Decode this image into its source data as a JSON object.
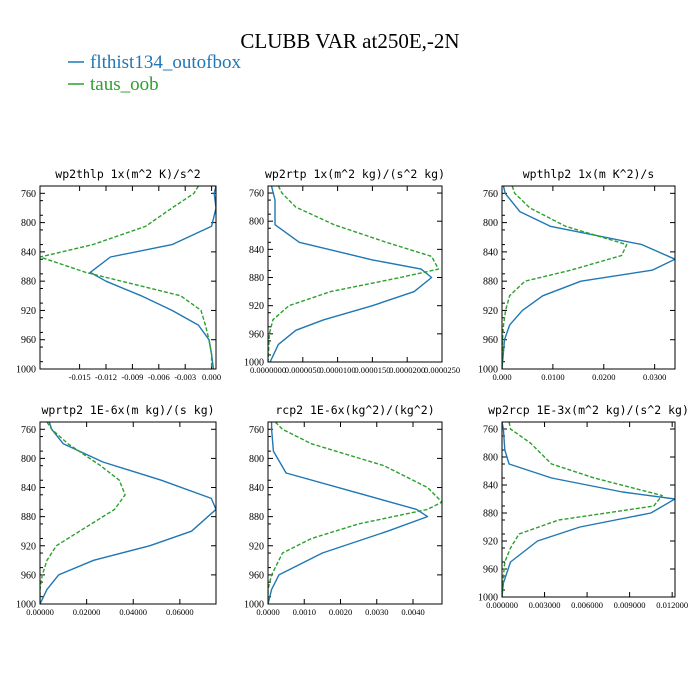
{
  "figure": {
    "title": "CLUBB VAR at250E,-2N",
    "legend": [
      {
        "name": "flthist134_outofbox",
        "color": "#1f77b4",
        "dash": "solid"
      },
      {
        "name": "taus_oob",
        "color": "#2ca02c",
        "dash": "dashed"
      }
    ]
  },
  "chart_data": [
    {
      "type": "line",
      "title": "wp2thlp  1x(m^2 K)/s^2",
      "ylim": [
        1000,
        750
      ],
      "yticks": [
        "760",
        "800",
        "840",
        "880",
        "920",
        "960",
        "1000"
      ],
      "xlim": [
        -0.0195,
        0.0005
      ],
      "xticks": [
        "-0.015",
        "-0.012",
        "-0.009",
        "-0.006",
        "-0.003",
        "0.000"
      ],
      "xtick_values": [
        -0.015,
        -0.012,
        -0.009,
        -0.006,
        -0.003,
        0.0
      ],
      "series": [
        {
          "name": "flthist134_outofbox",
          "y": [
            750,
            760,
            780,
            805,
            830,
            847,
            868,
            880,
            900,
            920,
            940,
            960,
            980,
            1000
          ],
          "x": [
            0.0005,
            0.0003,
            0.0005,
            0.0,
            -0.0045,
            -0.0115,
            -0.0138,
            -0.012,
            -0.008,
            -0.0045,
            -0.0015,
            -0.0003,
            0.0,
            0.0002
          ]
        },
        {
          "name": "taus_oob",
          "y": [
            750,
            760,
            780,
            805,
            830,
            847,
            868,
            900,
            920,
            940,
            960,
            980,
            1000
          ],
          "x": [
            -0.0015,
            -0.002,
            -0.0045,
            -0.0075,
            -0.0135,
            -0.0195,
            -0.0143,
            -0.0035,
            -0.0012,
            -0.0007,
            -0.0003,
            0.0,
            0.0
          ]
        }
      ]
    },
    {
      "type": "line",
      "title": "wp2rtp  1x(m^2 kg)/(s^2 kg)",
      "ylim": [
        1000,
        750
      ],
      "yticks": [
        "760",
        "800",
        "840",
        "880",
        "920",
        "960",
        "1000"
      ],
      "xlim": [
        0,
        2.5e-05
      ],
      "xticks": [
        "0.0000000",
        "0.0000050",
        "0.0000100",
        "0.0000150",
        "0.0000200",
        "0.0000250"
      ],
      "xtick_values": [
        0,
        5e-06,
        1e-05,
        1.5e-05,
        2e-05,
        2.5e-05
      ],
      "series": [
        {
          "name": "flthist134_outofbox",
          "y": [
            750,
            770,
            805,
            830,
            855,
            868,
            880,
            900,
            920,
            940,
            955,
            975,
            1000
          ],
          "x": [
            5e-07,
            1e-06,
            1e-06,
            4.5e-06,
            1.5e-05,
            2.2e-05,
            2.35e-05,
            2.1e-05,
            1.5e-05,
            8e-06,
            4e-06,
            1.5e-06,
            3e-07
          ]
        },
        {
          "name": "taus_oob",
          "y": [
            750,
            760,
            780,
            805,
            830,
            850,
            868,
            880,
            900,
            920,
            940,
            960,
            1000
          ],
          "x": [
            1.5e-06,
            2e-06,
            4e-06,
            9.5e-06,
            1.7e-05,
            2.35e-05,
            2.45e-05,
            1.9e-05,
            9e-06,
            3e-06,
            7e-07,
            2e-07,
            0.0
          ]
        }
      ]
    },
    {
      "type": "line",
      "title": "wpthlp2  1x(m K^2)/s",
      "ylim": [
        1000,
        750
      ],
      "yticks": [
        "760",
        "800",
        "840",
        "880",
        "920",
        "960",
        "1000"
      ],
      "xlim": [
        0,
        0.034
      ],
      "xticks": [
        "0.000",
        "0.0100",
        "0.0200",
        "0.0300"
      ],
      "xtick_values": [
        0,
        0.01,
        0.02,
        0.03
      ],
      "series": [
        {
          "name": "flthist134_outofbox",
          "y": [
            750,
            760,
            785,
            805,
            830,
            850,
            865,
            880,
            900,
            920,
            940,
            960,
            1000
          ],
          "x": [
            0.0003,
            0.0006,
            0.0035,
            0.0095,
            0.0275,
            0.034,
            0.0295,
            0.0155,
            0.008,
            0.004,
            0.0015,
            0.0005,
            0.0
          ]
        },
        {
          "name": "taus_oob",
          "y": [
            750,
            760,
            780,
            805,
            830,
            845,
            865,
            880,
            900,
            920,
            940,
            960,
            1000
          ],
          "x": [
            0.002,
            0.0025,
            0.0055,
            0.0125,
            0.0245,
            0.0235,
            0.0135,
            0.0045,
            0.0015,
            0.0007,
            0.0003,
            0.0001,
            0.0
          ]
        }
      ]
    },
    {
      "type": "line",
      "title": "wprtp2  1E-6x(m kg)/(s kg)",
      "ylim": [
        1000,
        750
      ],
      "yticks": [
        "760",
        "800",
        "840",
        "880",
        "920",
        "960",
        "1000"
      ],
      "xlim": [
        0,
        0.0755
      ],
      "xticks": [
        "0.00000",
        "0.02000",
        "0.04000",
        "0.06000"
      ],
      "xtick_values": [
        0,
        0.02,
        0.04,
        0.06
      ],
      "series": [
        {
          "name": "flthist134_outofbox",
          "y": [
            750,
            760,
            780,
            805,
            830,
            855,
            870,
            900,
            920,
            940,
            960,
            980,
            1000
          ],
          "x": [
            0.004,
            0.005,
            0.01,
            0.027,
            0.052,
            0.0735,
            0.0755,
            0.065,
            0.047,
            0.023,
            0.008,
            0.003,
            0.0
          ]
        },
        {
          "name": "taus_oob",
          "y": [
            750,
            760,
            780,
            810,
            830,
            850,
            870,
            900,
            920,
            940,
            960,
            980,
            1000
          ],
          "x": [
            0.003,
            0.005,
            0.012,
            0.026,
            0.034,
            0.0365,
            0.032,
            0.017,
            0.007,
            0.003,
            0.001,
            0.0,
            0.0
          ]
        }
      ]
    },
    {
      "type": "line",
      "title": "rcp2  1E-6x(kg^2)/(kg^2)",
      "ylim": [
        1000,
        750
      ],
      "yticks": [
        "760",
        "800",
        "840",
        "880",
        "920",
        "960",
        "1000"
      ],
      "xlim": [
        0,
        0.0048
      ],
      "xticks": [
        "0.0000",
        "0.0010",
        "0.0020",
        "0.0030",
        "0.0040"
      ],
      "xtick_values": [
        0,
        0.001,
        0.002,
        0.003,
        0.004
      ],
      "series": [
        {
          "name": "flthist134_outofbox",
          "y": [
            750,
            760,
            790,
            820,
            845,
            870,
            880,
            900,
            930,
            960,
            980,
            1000
          ],
          "x": [
            0.0001,
            0.0001,
            0.00015,
            0.0005,
            0.0023,
            0.0041,
            0.0044,
            0.0033,
            0.0015,
            0.0003,
            0.0001,
            0.0
          ]
        },
        {
          "name": "taus_oob",
          "y": [
            750,
            760,
            780,
            810,
            840,
            860,
            870,
            890,
            910,
            930,
            960,
            980,
            1000
          ],
          "x": [
            0.0002,
            0.0004,
            0.0012,
            0.0032,
            0.0044,
            0.0048,
            0.0044,
            0.0025,
            0.0012,
            0.0004,
            0.0001,
            0.0,
            0.0
          ]
        }
      ]
    },
    {
      "type": "line",
      "title": "wp2rcp  1E-3x(m^2 kg)/(s^2 kg)",
      "ylim": [
        1000,
        750
      ],
      "yticks": [
        "760",
        "800",
        "840",
        "880",
        "920",
        "960",
        "1000"
      ],
      "xlim": [
        0,
        0.0122
      ],
      "xticks": [
        "0.000000",
        "0.003000",
        "0.006000",
        "0.009000",
        "0.012000"
      ],
      "xtick_values": [
        0,
        0.003,
        0.006,
        0.009,
        0.012
      ],
      "series": [
        {
          "name": "flthist134_outofbox",
          "y": [
            750,
            760,
            790,
            810,
            830,
            850,
            860,
            880,
            900,
            920,
            950,
            980,
            1000
          ],
          "x": [
            0.0,
            0.0001,
            0.0002,
            0.0005,
            0.0035,
            0.0085,
            0.0122,
            0.0105,
            0.0055,
            0.0025,
            0.0006,
            0.0001,
            0.0
          ]
        },
        {
          "name": "taus_oob",
          "y": [
            750,
            760,
            780,
            810,
            830,
            855,
            870,
            890,
            910,
            930,
            950,
            970,
            1000
          ],
          "x": [
            0.0005,
            0.0006,
            0.002,
            0.0035,
            0.0065,
            0.0113,
            0.0107,
            0.004,
            0.0012,
            0.0006,
            0.0002,
            0.0001,
            0.0
          ]
        }
      ]
    }
  ]
}
